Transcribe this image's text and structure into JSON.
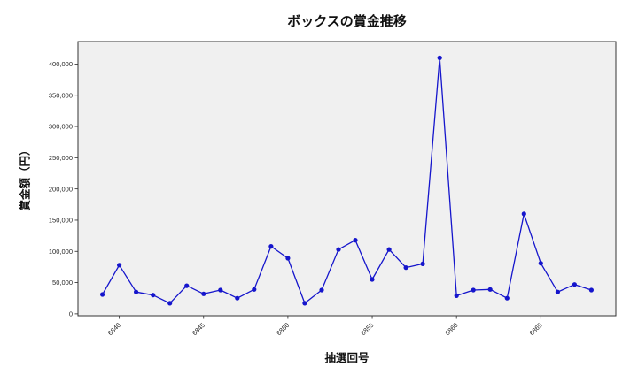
{
  "chart_data": {
    "type": "line",
    "title": "ボックスの賞金推移",
    "xlabel": "抽選回号",
    "ylabel": "賞金額（円）",
    "x": [
      6839,
      6840,
      6841,
      6842,
      6843,
      6844,
      6845,
      6846,
      6847,
      6848,
      6849,
      6850,
      6851,
      6852,
      6853,
      6854,
      6855,
      6856,
      6857,
      6858,
      6859,
      6860,
      6861,
      6862,
      6863,
      6864,
      6865,
      6866,
      6867,
      6868
    ],
    "y": [
      31000,
      78000,
      35000,
      30000,
      17000,
      45000,
      32000,
      38000,
      25000,
      39000,
      108000,
      89000,
      17000,
      38000,
      103000,
      118000,
      55000,
      103000,
      74000,
      80000,
      410000,
      29000,
      38000,
      39000,
      25000,
      160000,
      81000,
      35000,
      47000,
      38000
    ],
    "xticks": [
      6840,
      6845,
      6850,
      6855,
      6860,
      6865
    ],
    "yticks": [
      0,
      50000,
      100000,
      150000,
      200000,
      250000,
      300000,
      350000,
      400000
    ],
    "xlim": [
      6837.55,
      6869.45
    ],
    "ylim": [
      -3000,
      436000
    ],
    "grid": false,
    "legend": null,
    "line_color": "#1515cc",
    "marker": "circle",
    "plot_bg": "#f0f0f0",
    "spine_color": "#333333",
    "tick_color": "#262626",
    "x_tick_rotation_deg": 45
  }
}
